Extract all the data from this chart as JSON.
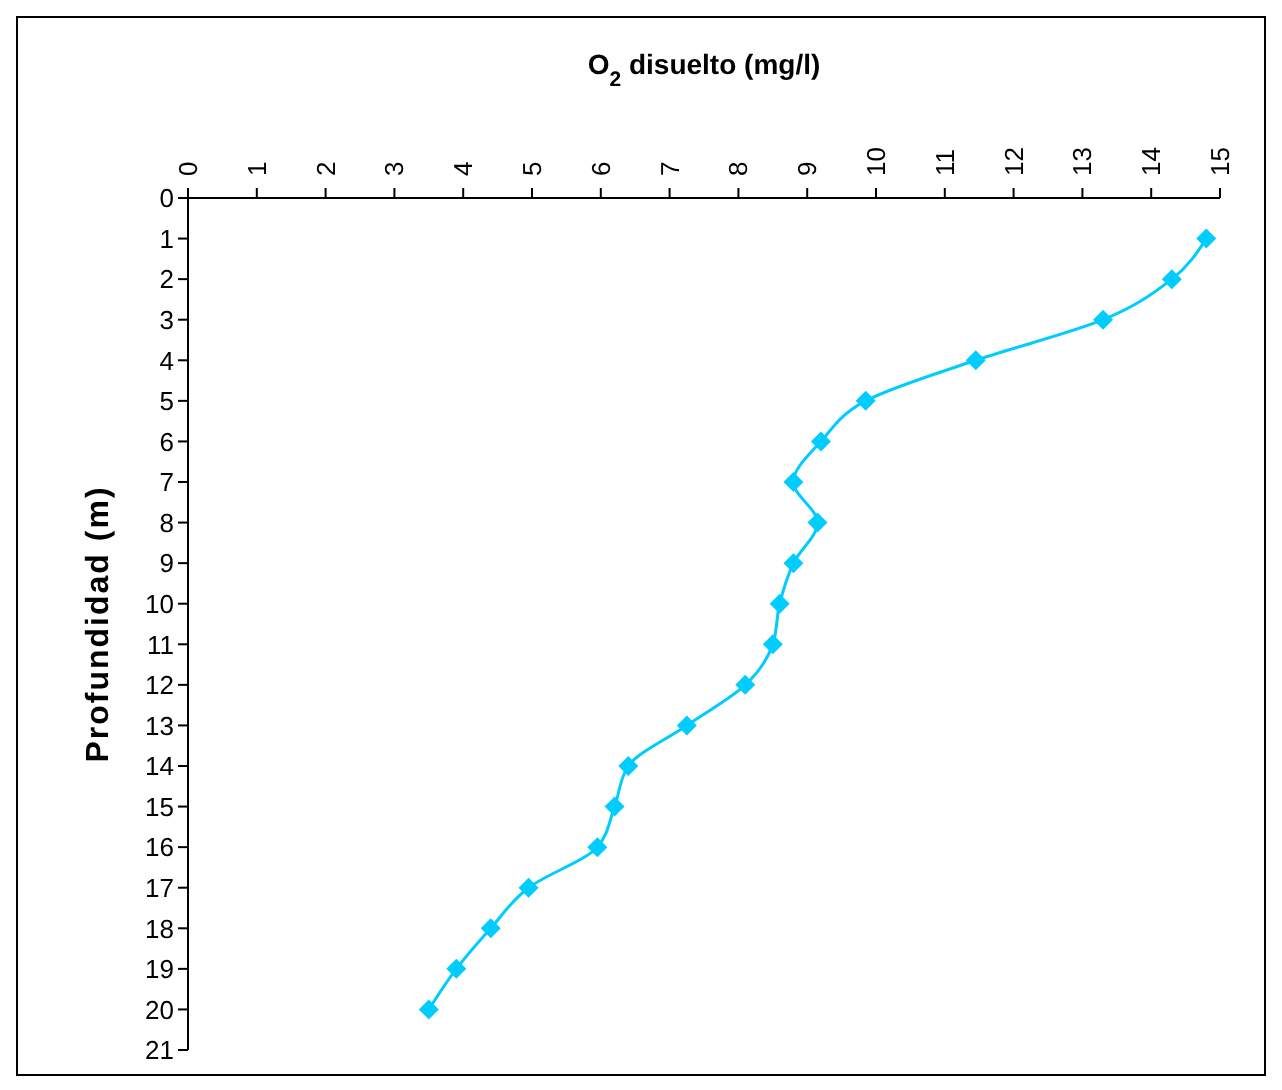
{
  "chart_data": {
    "type": "line",
    "xlabel": "O$_{2}$ disuelto (mg/l)",
    "ylabel": "Profundidad (m)",
    "x": [
      14.8,
      14.3,
      13.3,
      11.45,
      9.85,
      9.2,
      8.8,
      9.15,
      8.8,
      8.6,
      8.5,
      8.1,
      7.25,
      6.4,
      6.2,
      5.95,
      4.95,
      4.4,
      3.9,
      3.5
    ],
    "series": [
      {
        "color": "#00ccff",
        "values": [
          1,
          2,
          3,
          4,
          5,
          6,
          7,
          8,
          9,
          10,
          11,
          12,
          13,
          14,
          15,
          16,
          17,
          18,
          19,
          20
        ]
      }
    ],
    "xlim": [
      0,
      15
    ],
    "xticks": [
      0,
      1,
      2,
      3,
      4,
      5,
      6,
      7,
      8,
      9,
      10,
      11,
      12,
      13,
      14,
      15
    ],
    "ylim": [
      21,
      0
    ],
    "yticks": [
      0,
      1,
      2,
      3,
      4,
      5,
      6,
      7,
      8,
      9,
      10,
      11,
      12,
      13,
      14,
      15,
      16,
      17,
      18,
      19,
      20,
      21
    ],
    "marker": "diamond",
    "grid": false,
    "legend": false
  }
}
